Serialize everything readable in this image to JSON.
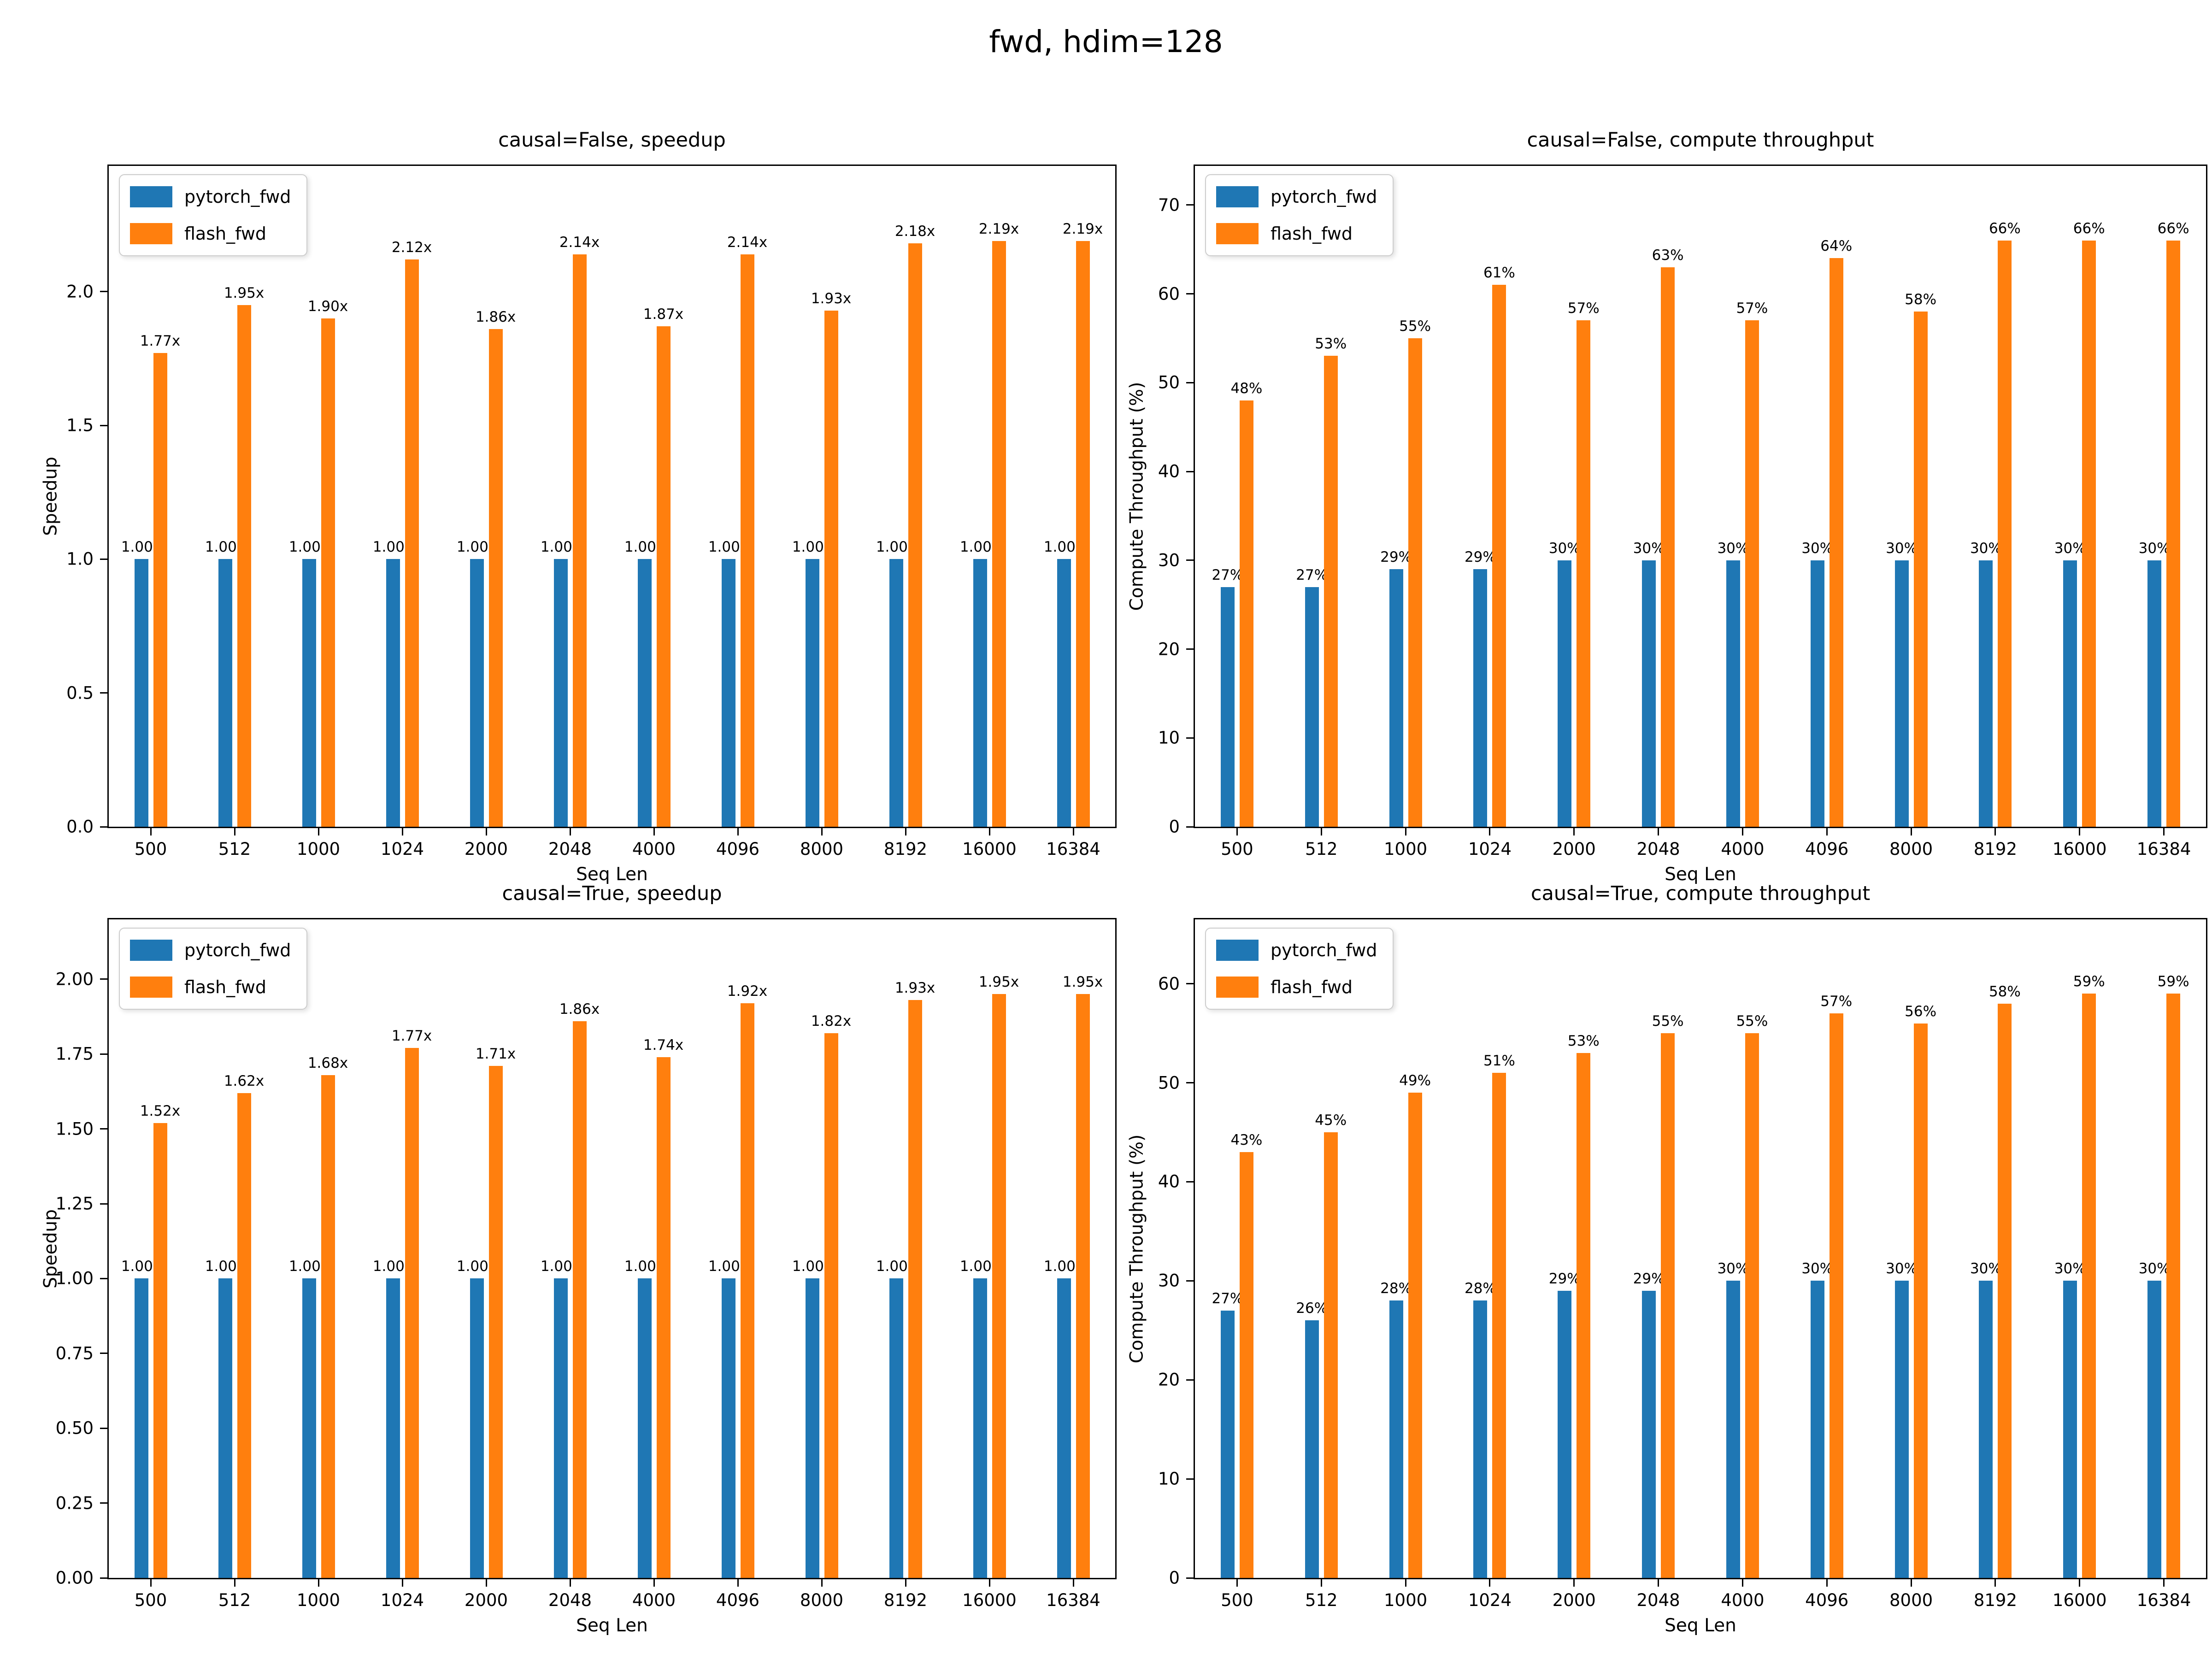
{
  "figure": {
    "title": "fwd, hdim=128",
    "background": "#ffffff"
  },
  "colors": {
    "pytorch_fwd": "#1f77b4",
    "flash_fwd": "#ff7f0e"
  },
  "legend": {
    "position": "upper left",
    "items": [
      {
        "name": "pytorch_fwd",
        "color": "#1f77b4"
      },
      {
        "name": "flash_fwd",
        "color": "#ff7f0e"
      }
    ]
  },
  "chart_data": [
    {
      "type": "bar",
      "title": "causal=False, speedup",
      "xlabel": "Seq Len",
      "ylabel": "Speedup",
      "grid": false,
      "legend_position": "upper left",
      "categories": [
        "500",
        "512",
        "1000",
        "1024",
        "2000",
        "2048",
        "4000",
        "4096",
        "8000",
        "8192",
        "16000",
        "16384"
      ],
      "ylim": [
        0,
        2.47
      ],
      "ytick_values": [
        0.0,
        0.5,
        1.0,
        1.5,
        2.0
      ],
      "ytick_labels": [
        "0.0",
        "0.5",
        "1.0",
        "1.5",
        "2.0"
      ],
      "series": [
        {
          "name": "pytorch_fwd",
          "color": "#1f77b4",
          "values": [
            1.0,
            1.0,
            1.0,
            1.0,
            1.0,
            1.0,
            1.0,
            1.0,
            1.0,
            1.0,
            1.0,
            1.0
          ],
          "labels": [
            "1.00x",
            "1.00x",
            "1.00x",
            "1.00x",
            "1.00x",
            "1.00x",
            "1.00x",
            "1.00x",
            "1.00x",
            "1.00x",
            "1.00x",
            "1.00x"
          ]
        },
        {
          "name": "flash_fwd",
          "color": "#ff7f0e",
          "values": [
            1.77,
            1.95,
            1.9,
            2.12,
            1.86,
            2.14,
            1.87,
            2.14,
            1.93,
            2.18,
            2.19,
            2.19
          ],
          "labels": [
            "1.77x",
            "1.95x",
            "1.90x",
            "2.12x",
            "1.86x",
            "2.14x",
            "1.87x",
            "2.14x",
            "1.93x",
            "2.18x",
            "2.19x",
            "2.19x"
          ]
        }
      ]
    },
    {
      "type": "bar",
      "title": "causal=False, compute throughput",
      "xlabel": "Seq Len",
      "ylabel": "Compute Throughput (%)",
      "grid": false,
      "legend_position": "upper left",
      "categories": [
        "500",
        "512",
        "1000",
        "1024",
        "2000",
        "2048",
        "4000",
        "4096",
        "8000",
        "8192",
        "16000",
        "16384"
      ],
      "ylim": [
        0,
        74.4
      ],
      "ytick_values": [
        0,
        10,
        20,
        30,
        40,
        50,
        60,
        70
      ],
      "ytick_labels": [
        "0",
        "10",
        "20",
        "30",
        "40",
        "50",
        "60",
        "70"
      ],
      "series": [
        {
          "name": "pytorch_fwd",
          "color": "#1f77b4",
          "values": [
            27,
            27,
            29,
            29,
            30,
            30,
            30,
            30,
            30,
            30,
            30,
            30
          ],
          "labels": [
            "27%",
            "27%",
            "29%",
            "29%",
            "30%",
            "30%",
            "30%",
            "30%",
            "30%",
            "30%",
            "30%",
            "30%"
          ]
        },
        {
          "name": "flash_fwd",
          "color": "#ff7f0e",
          "values": [
            48,
            53,
            55,
            61,
            57,
            63,
            57,
            64,
            58,
            66,
            66,
            66
          ],
          "labels": [
            "48%",
            "53%",
            "55%",
            "61%",
            "57%",
            "63%",
            "57%",
            "64%",
            "58%",
            "66%",
            "66%",
            "66%"
          ]
        }
      ]
    },
    {
      "type": "bar",
      "title": "causal=True, speedup",
      "xlabel": "Seq Len",
      "ylabel": "Speedup",
      "grid": false,
      "legend_position": "upper left",
      "categories": [
        "500",
        "512",
        "1000",
        "1024",
        "2000",
        "2048",
        "4000",
        "4096",
        "8000",
        "8192",
        "16000",
        "16384"
      ],
      "ylim": [
        0,
        2.2
      ],
      "ytick_values": [
        0.0,
        0.25,
        0.5,
        0.75,
        1.0,
        1.25,
        1.5,
        1.75,
        2.0
      ],
      "ytick_labels": [
        "0.00",
        "0.25",
        "0.50",
        "0.75",
        "1.00",
        "1.25",
        "1.50",
        "1.75",
        "2.00"
      ],
      "series": [
        {
          "name": "pytorch_fwd",
          "color": "#1f77b4",
          "values": [
            1.0,
            1.0,
            1.0,
            1.0,
            1.0,
            1.0,
            1.0,
            1.0,
            1.0,
            1.0,
            1.0,
            1.0
          ],
          "labels": [
            "1.00x",
            "1.00x",
            "1.00x",
            "1.00x",
            "1.00x",
            "1.00x",
            "1.00x",
            "1.00x",
            "1.00x",
            "1.00x",
            "1.00x",
            "1.00x"
          ]
        },
        {
          "name": "flash_fwd",
          "color": "#ff7f0e",
          "values": [
            1.52,
            1.62,
            1.68,
            1.77,
            1.71,
            1.86,
            1.74,
            1.92,
            1.82,
            1.93,
            1.95,
            1.95
          ],
          "labels": [
            "1.52x",
            "1.62x",
            "1.68x",
            "1.77x",
            "1.71x",
            "1.86x",
            "1.74x",
            "1.92x",
            "1.82x",
            "1.93x",
            "1.95x",
            "1.95x"
          ]
        }
      ]
    },
    {
      "type": "bar",
      "title": "causal=True, compute throughput",
      "xlabel": "Seq Len",
      "ylabel": "Compute Throughput (%)",
      "grid": false,
      "legend_position": "upper left",
      "categories": [
        "500",
        "512",
        "1000",
        "1024",
        "2000",
        "2048",
        "4000",
        "4096",
        "8000",
        "8192",
        "16000",
        "16384"
      ],
      "ylim": [
        0,
        66.5
      ],
      "ytick_values": [
        0,
        10,
        20,
        30,
        40,
        50,
        60
      ],
      "ytick_labels": [
        "0",
        "10",
        "20",
        "30",
        "40",
        "50",
        "60"
      ],
      "series": [
        {
          "name": "pytorch_fwd",
          "color": "#1f77b4",
          "values": [
            27,
            26,
            28,
            28,
            29,
            29,
            30,
            30,
            30,
            30,
            30,
            30
          ],
          "labels": [
            "27%",
            "26%",
            "28%",
            "28%",
            "29%",
            "29%",
            "30%",
            "30%",
            "30%",
            "30%",
            "30%",
            "30%"
          ]
        },
        {
          "name": "flash_fwd",
          "color": "#ff7f0e",
          "values": [
            43,
            45,
            49,
            51,
            53,
            55,
            55,
            57,
            56,
            58,
            59,
            59
          ],
          "labels": [
            "43%",
            "45%",
            "49%",
            "51%",
            "53%",
            "55%",
            "55%",
            "57%",
            "56%",
            "58%",
            "59%",
            "59%"
          ]
        }
      ]
    }
  ]
}
